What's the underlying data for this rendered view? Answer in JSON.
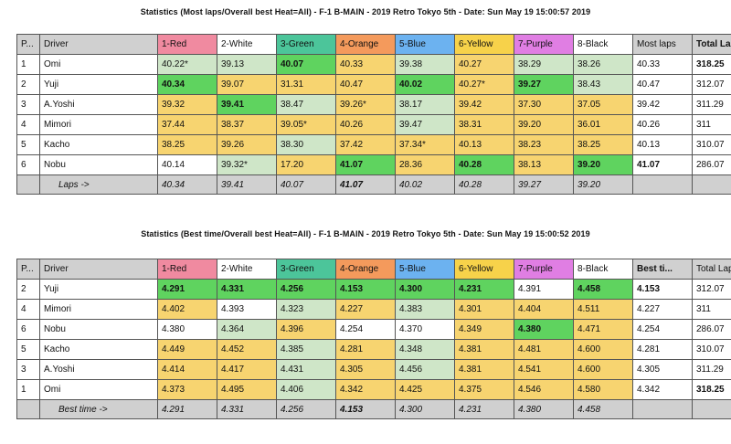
{
  "table1": {
    "title": "Statistics (Most laps/Overall best Heat=All) - F-1 B-MAIN - 2019 Retro Tokyo 5th - Date: Sun May 19 15:00:57 2019",
    "headers": [
      "P...",
      "Driver",
      "1-Red",
      "2-White",
      "3-Green",
      "4-Orange",
      "5-Blue",
      "6-Yellow",
      "7-Purple",
      "8-Black",
      "Most laps",
      "Total Laps"
    ],
    "rows": [
      {
        "pos": "1",
        "driver": "Omi",
        "cells": [
          "40.22*",
          "39.13",
          "40.07",
          "40.33",
          "39.38",
          "40.27",
          "38.29",
          "38.26"
        ],
        "colors": [
          "lg",
          "lg",
          "g",
          "y",
          "lg",
          "y",
          "lg",
          "lg"
        ],
        "bold": [
          false,
          false,
          true,
          false,
          false,
          false,
          false,
          false
        ],
        "best": "40.33",
        "total": "318.25",
        "total_bold": true
      },
      {
        "pos": "2",
        "driver": "Yuji",
        "cells": [
          "40.34",
          "39.07",
          "31.31",
          "40.47",
          "40.02",
          "40.27*",
          "39.27",
          "38.43"
        ],
        "colors": [
          "g",
          "y",
          "y",
          "y",
          "g",
          "y",
          "g",
          "lg"
        ],
        "bold": [
          true,
          false,
          false,
          false,
          true,
          false,
          true,
          false
        ],
        "best": "40.47",
        "total": "312.07",
        "total_bold": false
      },
      {
        "pos": "3",
        "driver": "A.Yoshi",
        "cells": [
          "39.32",
          "39.41",
          "38.47",
          "39.26*",
          "38.17",
          "39.42",
          "37.30",
          "37.05"
        ],
        "colors": [
          "y",
          "g",
          "lg",
          "y",
          "lg",
          "y",
          "y",
          "y"
        ],
        "bold": [
          false,
          true,
          false,
          false,
          false,
          false,
          false,
          false
        ],
        "best": "39.42",
        "total": "311.29",
        "total_bold": false
      },
      {
        "pos": "4",
        "driver": "Mimori",
        "cells": [
          "37.44",
          "38.37",
          "39.05*",
          "40.26",
          "39.47",
          "38.31",
          "39.20",
          "36.01"
        ],
        "colors": [
          "y",
          "y",
          "y",
          "y",
          "lg",
          "y",
          "y",
          "y"
        ],
        "bold": [
          false,
          false,
          false,
          false,
          false,
          false,
          false,
          false
        ],
        "best": "40.26",
        "total": "311",
        "total_bold": false
      },
      {
        "pos": "5",
        "driver": "Kacho",
        "cells": [
          "38.25",
          "39.26",
          "38.30",
          "37.42",
          "37.34*",
          "40.13",
          "38.23",
          "38.25"
        ],
        "colors": [
          "y",
          "y",
          "lg",
          "y",
          "y",
          "y",
          "y",
          "y"
        ],
        "bold": [
          false,
          false,
          false,
          false,
          false,
          false,
          false,
          false
        ],
        "best": "40.13",
        "total": "310.07",
        "total_bold": false
      },
      {
        "pos": "6",
        "driver": "Nobu",
        "cells": [
          "40.14",
          "39.32*",
          "17.20",
          "41.07",
          "28.36",
          "40.28",
          "38.13",
          "39.20"
        ],
        "colors": [
          "w",
          "lg",
          "y",
          "g",
          "y",
          "g",
          "y",
          "g"
        ],
        "bold": [
          false,
          false,
          false,
          true,
          false,
          true,
          false,
          true
        ],
        "best": "41.07",
        "best_bold": true,
        "total": "286.07",
        "total_bold": false
      }
    ],
    "summary_label": "Laps ->",
    "summary": [
      "40.34",
      "39.41",
      "40.07",
      "41.07",
      "40.02",
      "40.28",
      "39.27",
      "39.20"
    ],
    "summary_bold": [
      false,
      false,
      false,
      true,
      false,
      false,
      false,
      false
    ]
  },
  "table2": {
    "title": "Statistics (Best time/Overall best Heat=All) - F-1 B-MAIN - 2019 Retro Tokyo 5th - Date: Sun May 19 15:00:52 2019",
    "headers": [
      "P...",
      "Driver",
      "1-Red",
      "2-White",
      "3-Green",
      "4-Orange",
      "5-Blue",
      "6-Yellow",
      "7-Purple",
      "8-Black",
      "Best ti...",
      "Total Laps"
    ],
    "rows": [
      {
        "pos": "2",
        "driver": "Yuji",
        "cells": [
          "4.291",
          "4.331",
          "4.256",
          "4.153",
          "4.300",
          "4.231",
          "4.391",
          "4.458"
        ],
        "colors": [
          "g",
          "g",
          "g",
          "g",
          "g",
          "g",
          "w",
          "g"
        ],
        "bold": [
          true,
          true,
          true,
          true,
          true,
          true,
          false,
          true
        ],
        "best": "4.153",
        "best_bold": true,
        "total": "312.07",
        "total_bold": false
      },
      {
        "pos": "4",
        "driver": "Mimori",
        "cells": [
          "4.402",
          "4.393",
          "4.323",
          "4.227",
          "4.383",
          "4.301",
          "4.404",
          "4.511"
        ],
        "colors": [
          "y",
          "w",
          "lg",
          "y",
          "lg",
          "y",
          "y",
          "y"
        ],
        "bold": [
          false,
          false,
          false,
          false,
          false,
          false,
          false,
          false
        ],
        "best": "4.227",
        "total": "311",
        "total_bold": false
      },
      {
        "pos": "6",
        "driver": "Nobu",
        "cells": [
          "4.380",
          "4.364",
          "4.396",
          "4.254",
          "4.370",
          "4.349",
          "4.380",
          "4.471"
        ],
        "colors": [
          "w",
          "lg",
          "y",
          "w",
          "w",
          "y",
          "g",
          "y"
        ],
        "bold": [
          false,
          false,
          false,
          false,
          false,
          false,
          true,
          false
        ],
        "best": "4.254",
        "total": "286.07",
        "total_bold": false
      },
      {
        "pos": "5",
        "driver": "Kacho",
        "cells": [
          "4.449",
          "4.452",
          "4.385",
          "4.281",
          "4.348",
          "4.381",
          "4.481",
          "4.600"
        ],
        "colors": [
          "y",
          "y",
          "lg",
          "y",
          "lg",
          "y",
          "y",
          "y"
        ],
        "bold": [
          false,
          false,
          false,
          false,
          false,
          false,
          false,
          false
        ],
        "best": "4.281",
        "total": "310.07",
        "total_bold": false
      },
      {
        "pos": "3",
        "driver": "A.Yoshi",
        "cells": [
          "4.414",
          "4.417",
          "4.431",
          "4.305",
          "4.456",
          "4.381",
          "4.541",
          "4.600"
        ],
        "colors": [
          "y",
          "y",
          "lg",
          "y",
          "lg",
          "y",
          "y",
          "y"
        ],
        "bold": [
          false,
          false,
          false,
          false,
          false,
          false,
          false,
          false
        ],
        "best": "4.305",
        "total": "311.29",
        "total_bold": false
      },
      {
        "pos": "1",
        "driver": "Omi",
        "cells": [
          "4.373",
          "4.495",
          "4.406",
          "4.342",
          "4.425",
          "4.375",
          "4.546",
          "4.580"
        ],
        "colors": [
          "y",
          "y",
          "lg",
          "y",
          "y",
          "y",
          "y",
          "y"
        ],
        "bold": [
          false,
          false,
          false,
          false,
          false,
          false,
          false,
          false
        ],
        "best": "4.342",
        "total": "318.25",
        "total_bold": true
      }
    ],
    "summary_label": "Best time ->",
    "summary": [
      "4.291",
      "4.331",
      "4.256",
      "4.153",
      "4.300",
      "4.231",
      "4.380",
      "4.458"
    ],
    "summary_bold": [
      false,
      false,
      false,
      true,
      false,
      false,
      false,
      false
    ]
  },
  "header_colors": [
    "hdr-red",
    "hdr-white",
    "hdr-green",
    "hdr-orange",
    "hdr-blue",
    "hdr-yellow",
    "hdr-purple",
    "hdr-black"
  ]
}
